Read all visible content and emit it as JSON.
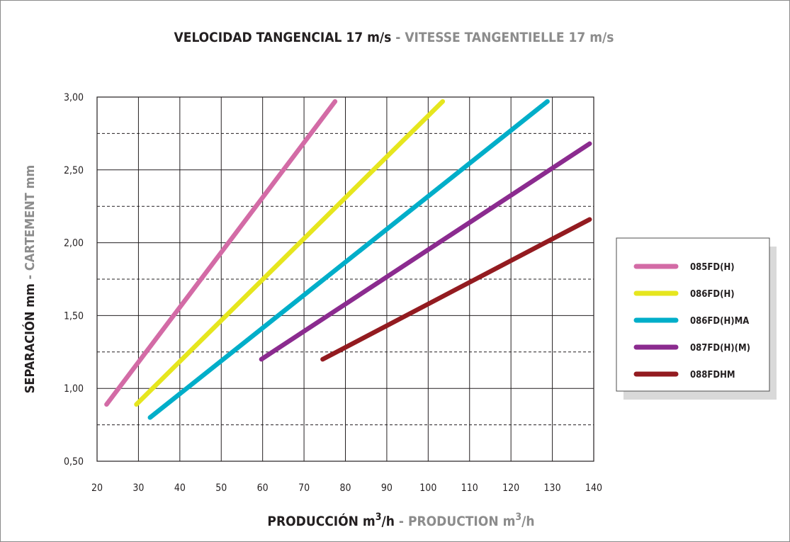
{
  "chart_data": {
    "type": "line",
    "title": {
      "main": "VELOCIDAD TANGENCIAL 17 m/s",
      "separator": " - ",
      "secondary": "VITESSE TANGENTIELLE 17 m/s"
    },
    "xlabel": {
      "main_prefix": "PRODUCCIÓN m",
      "main_sup": "3",
      "main_suffix": "/h",
      "separator": " - ",
      "secondary_prefix": "PRODUCTION m",
      "secondary_sup": "3",
      "secondary_suffix": "/h"
    },
    "ylabel": {
      "main": "SEPARACIÓN mm",
      "separator": " - ",
      "secondary": "CARTEMENT mm"
    },
    "xlim": [
      20,
      140
    ],
    "ylim": [
      0.5,
      3.0
    ],
    "x_ticks": [
      20,
      30,
      40,
      50,
      60,
      70,
      80,
      90,
      100,
      110,
      120,
      130,
      140
    ],
    "x_tick_labels": [
      "20",
      "30",
      "40",
      "50",
      "60",
      "70",
      "80",
      "90",
      "100",
      "110",
      "120",
      "130",
      "140"
    ],
    "y_ticks": [
      0.5,
      1.0,
      1.5,
      2.0,
      2.5,
      3.0
    ],
    "y_tick_labels": [
      "0,50",
      "1,00",
      "1,50",
      "2,00",
      "2,50",
      "3,00"
    ],
    "y_dashed_gridlines": [
      0.75,
      1.25,
      1.75,
      2.25,
      2.75
    ],
    "grid": true,
    "legend_position": "right",
    "series": [
      {
        "name": "085FD(H)",
        "color": "#d36ba6",
        "points": [
          [
            22.3,
            0.89
          ],
          [
            77.5,
            2.97
          ]
        ]
      },
      {
        "name": "086FD(H)",
        "color": "#e6e61e",
        "points": [
          [
            29.5,
            0.89
          ],
          [
            103.5,
            2.97
          ]
        ]
      },
      {
        "name": "086FD(H)MA",
        "color": "#00aec9",
        "points": [
          [
            32.8,
            0.8
          ],
          [
            128.8,
            2.97
          ]
        ]
      },
      {
        "name": "087FD(H)(M)",
        "color": "#8b2b8f",
        "points": [
          [
            59.7,
            1.2
          ],
          [
            139.0,
            2.68
          ]
        ]
      },
      {
        "name": "088FDHM",
        "color": "#931b20",
        "points": [
          [
            74.5,
            1.2
          ],
          [
            139.0,
            2.16
          ]
        ]
      }
    ]
  }
}
